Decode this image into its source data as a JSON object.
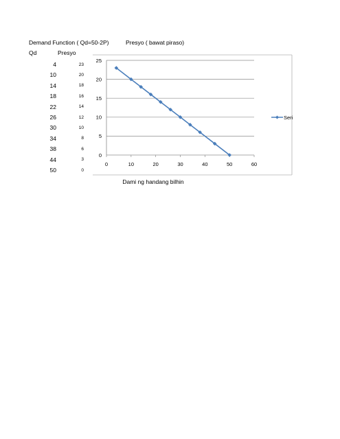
{
  "sheet": {
    "heading_left": "Demand Function ( Qd=50-2P)",
    "heading_right": "Presyo ( bawat piraso)",
    "col_qd": "Qd",
    "col_presyo": "Presyo",
    "qd_values": [
      "4",
      "10",
      "14",
      "18",
      "22",
      "26",
      "30",
      "34",
      "38",
      "44",
      "50"
    ],
    "presyo_values": [
      "23",
      "20",
      "18",
      "16",
      "14",
      "12",
      "10",
      "8",
      "6",
      "3",
      "0"
    ]
  },
  "chart_data": {
    "type": "scatter",
    "title": "",
    "xlabel": "Dami ng handang bilhin",
    "ylabel": "",
    "xlim": [
      0,
      60
    ],
    "ylim": [
      0,
      25
    ],
    "x_ticks": [
      "0",
      "10",
      "20",
      "30",
      "40",
      "50",
      "60"
    ],
    "y_ticks": [
      "0",
      "5",
      "10",
      "15",
      "20",
      "25"
    ],
    "grid": "horizontal",
    "legend_position": "right",
    "series": [
      {
        "name": "Seri",
        "x": [
          4,
          10,
          14,
          18,
          22,
          26,
          30,
          34,
          38,
          44,
          50
        ],
        "y": [
          23,
          20,
          18,
          16,
          14,
          12,
          10,
          8,
          6,
          3,
          0
        ]
      }
    ],
    "colors": {
      "series": "#4a7ebb",
      "grid": "#8c8c8c",
      "axis": "#8c8c8c"
    }
  }
}
